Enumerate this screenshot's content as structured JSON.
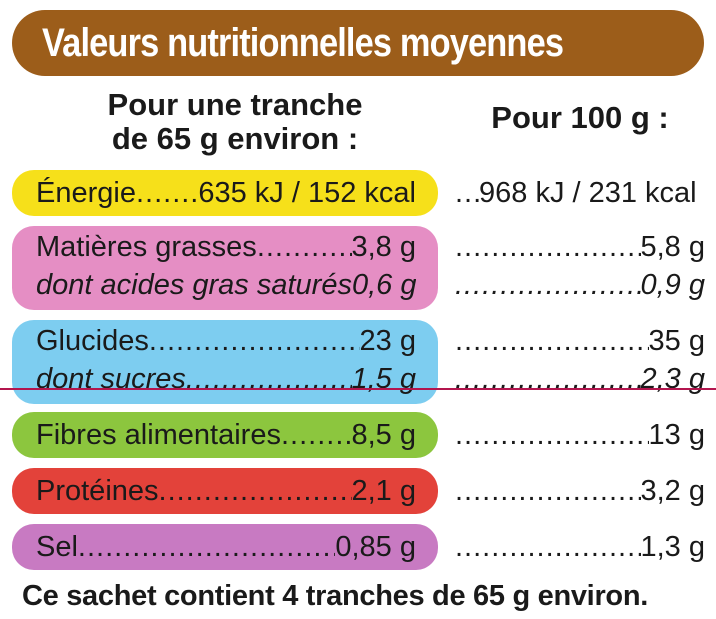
{
  "title": "Valeurs nutritionnelles moyennes",
  "headers": {
    "per_slice_line1": "Pour une tranche",
    "per_slice_line2": "de 65 g environ :",
    "per_100g": "Pour 100 g :"
  },
  "colors": {
    "title_bg": "#9c5d1a",
    "energie": "#f6e01a",
    "matieres_grasses": "#e58ec4",
    "glucides": "#7dcdf0",
    "fibres": "#8cc63e",
    "proteines": "#e3423a",
    "sel": "#c87ac2"
  },
  "rows": {
    "energie": {
      "label": "Énergie",
      "slice": "635 kJ / 152 kcal",
      "per100": "968 kJ / 231 kcal"
    },
    "matieres_grasses": {
      "label": "Matières grasses",
      "slice": "3,8 g",
      "per100": "5,8 g"
    },
    "acides_gras": {
      "label": "dont acides gras saturés",
      "slice": "0,6 g",
      "per100": "0,9 g"
    },
    "glucides": {
      "label": "Glucides",
      "slice": "23 g",
      "per100": "35 g"
    },
    "sucres": {
      "label": "dont sucres",
      "slice": "1,5 g",
      "per100": "2,3 g"
    },
    "fibres": {
      "label": "Fibres alimentaires",
      "slice": "8,5 g",
      "per100": "13 g"
    },
    "proteines": {
      "label": "Protéines",
      "slice": "2,1 g",
      "per100": "3,2 g"
    },
    "sel": {
      "label": "Sel",
      "slice": "0,85 g",
      "per100": "1,3 g"
    }
  },
  "footer": "Ce sachet contient 4 tranches de 65 g environ."
}
